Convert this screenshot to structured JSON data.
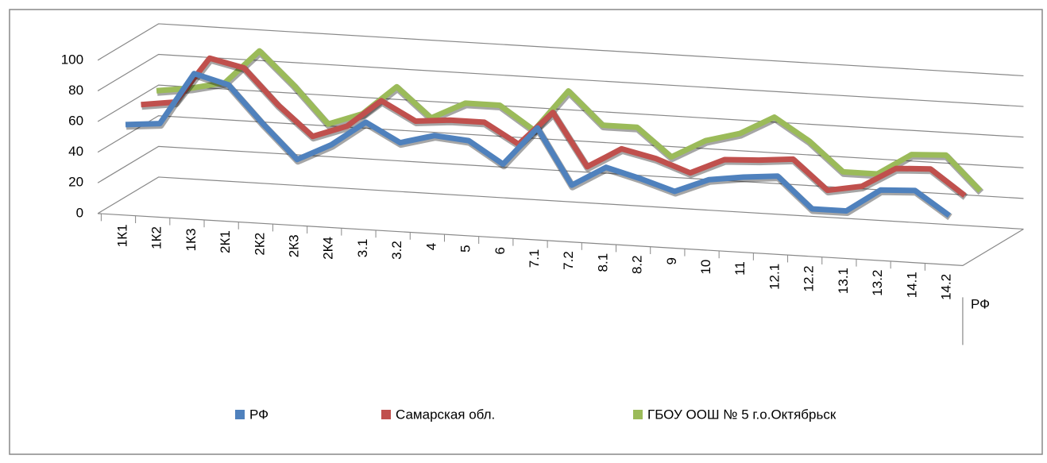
{
  "chart_data": {
    "type": "line3d",
    "categories": [
      "1К1",
      "1К2",
      "1К3",
      "2К1",
      "2К2",
      "2К3",
      "2К4",
      "3.1",
      "3.2",
      "4",
      "5",
      "6",
      "7.1",
      "7.2",
      "8.1",
      "8.2",
      "9",
      "10",
      "11",
      "12.1",
      "12.2",
      "13.1",
      "13.2",
      "14.1",
      "14.2"
    ],
    "series": [
      {
        "name": "РФ",
        "color": "#4f81bd",
        "values": [
          56,
          58,
          92,
          86,
          62,
          40,
          51,
          67,
          55,
          61,
          59,
          45,
          70,
          34,
          47,
          41,
          34,
          43,
          46,
          48,
          28,
          28,
          43,
          44,
          29
        ]
      },
      {
        "name": "Самарская обл.",
        "color": "#c0504d",
        "values": [
          63,
          66,
          96,
          91,
          68,
          49,
          57,
          75,
          63,
          65,
          65,
          52,
          74,
          40,
          53,
          48,
          40,
          50,
          51,
          53,
          34,
          38,
          51,
          52,
          36
        ]
      },
      {
        "name": "ГБОУ ООШ № 5 г.о.Октябрьск",
        "color": "#9bbb59",
        "values": [
          66,
          69,
          74,
          96,
          75,
          51,
          59,
          78,
          59,
          70,
          70,
          55,
          82,
          61,
          61,
          43,
          55,
          61,
          73,
          59,
          40,
          40,
          54,
          55,
          33
        ]
      }
    ],
    "ylim": [
      0,
      100
    ],
    "yticks": [
      0,
      20,
      40,
      60,
      80,
      100
    ],
    "grid": true,
    "legend": "bottom"
  }
}
